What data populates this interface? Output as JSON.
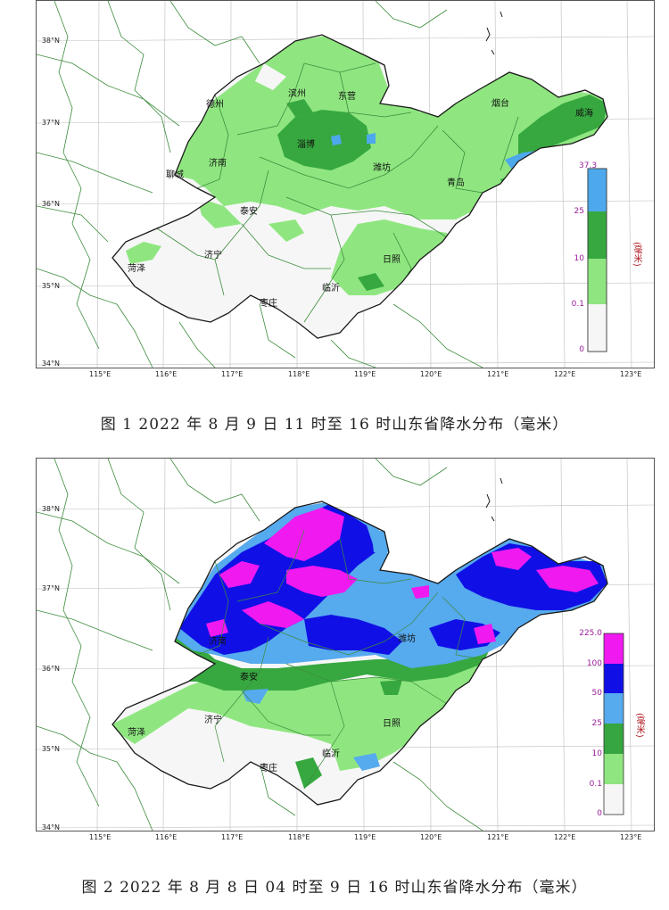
{
  "maps": [
    {
      "caption": "图 1 2022 年 8 月 9 日 11 时至 16 时山东省降水分布（毫米）",
      "legend": {
        "max_label": "37.3",
        "ticks": [
          "25",
          "10",
          "0.1",
          "0"
        ],
        "unit": "(毫米)",
        "bins": [
          {
            "range": "25–37.3",
            "color": "#4ea8ec"
          },
          {
            "range": "10–25",
            "color": "#37a840"
          },
          {
            "range": "0.1–10",
            "color": "#8fe680"
          },
          {
            "range": "0–0.1",
            "color": "#f6f6f6"
          }
        ]
      },
      "lat_labels": [
        "38°N",
        "37°N",
        "36°N",
        "35°N",
        "34°N"
      ],
      "lon_labels": [
        "115°E",
        "116°E",
        "117°E",
        "118°E",
        "119°E",
        "120°E",
        "121°E",
        "122°E",
        "123°E"
      ],
      "cities": [
        "德州",
        "滨州",
        "东营",
        "烟台",
        "威海",
        "淄博",
        "聊城",
        "济南",
        "潍坊",
        "青岛",
        "泰安",
        "济宁",
        "日照",
        "菏泽",
        "临沂",
        "枣庄"
      ]
    },
    {
      "caption": "图 2 2022 年 8 月 8 日 04 时至 9 日 16 时山东省降水分布（毫米）",
      "legend": {
        "max_label": "225.0",
        "ticks": [
          "100",
          "50",
          "25",
          "10",
          "0.1",
          "0"
        ],
        "unit": "(毫米)",
        "bins": [
          {
            "range": "100–225",
            "color": "#f019f0"
          },
          {
            "range": "50–100",
            "color": "#1010e6"
          },
          {
            "range": "25–50",
            "color": "#56aaee"
          },
          {
            "range": "10–25",
            "color": "#36a640"
          },
          {
            "range": "0.1–10",
            "color": "#8fe680"
          },
          {
            "range": "0–0.1",
            "color": "#f6f6f6"
          }
        ]
      },
      "lat_labels": [
        "38°N",
        "37°N",
        "36°N",
        "35°N",
        "34°N"
      ],
      "lon_labels": [
        "115°E",
        "116°E",
        "117°E",
        "118°E",
        "119°E",
        "120°E",
        "121°E",
        "122°E",
        "123°E"
      ],
      "cities": [
        "济南",
        "潍坊",
        "泰安",
        "济宁",
        "日照",
        "菏泽",
        "临沂",
        "枣庄"
      ]
    }
  ],
  "colors": {
    "outline": "#1a1a1a",
    "county_lines": "#3c8c3c",
    "light_green": "#8fe680",
    "green": "#37a840",
    "light_blue": "#56aaee",
    "blue": "#1010e6",
    "magenta": "#f019f0",
    "no_rain": "#f6f6f6"
  }
}
